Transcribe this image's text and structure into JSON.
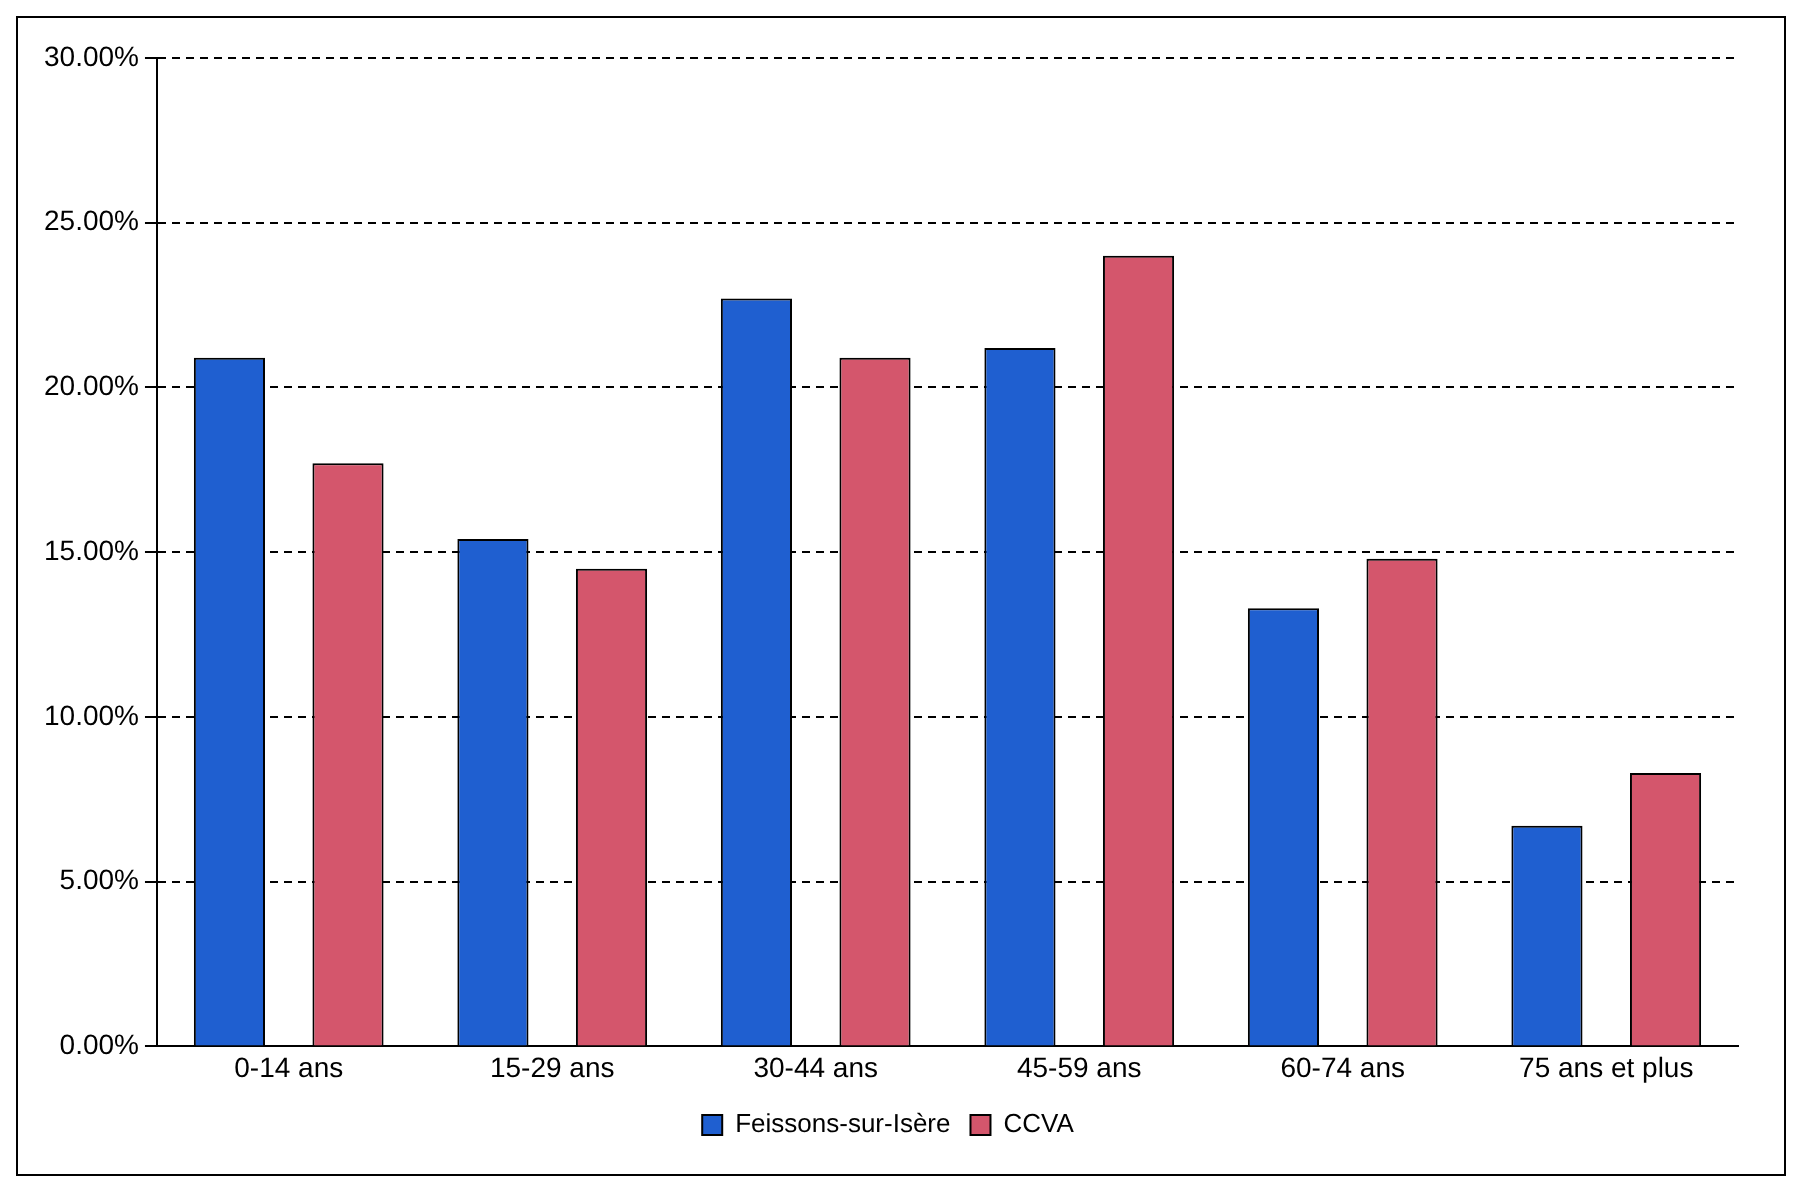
{
  "chart_data": {
    "type": "bar",
    "categories": [
      "0-14 ans",
      "15-29 ans",
      "30-44 ans",
      "45-59 ans",
      "60-74 ans",
      "75 ans et plus"
    ],
    "series": [
      {
        "name": "Feissons-sur-Isère",
        "color": "#1f5fd0",
        "values": [
          20.9,
          15.4,
          22.7,
          21.2,
          13.3,
          6.7
        ]
      },
      {
        "name": "CCVA",
        "color": "#d4566c",
        "values": [
          17.7,
          14.5,
          20.9,
          24.0,
          14.8,
          8.3
        ]
      }
    ],
    "ylim": [
      0,
      30
    ],
    "yticks": [
      {
        "value": 0,
        "label": "0.00%"
      },
      {
        "value": 5,
        "label": "5.00%"
      },
      {
        "value": 10,
        "label": "10.00%"
      },
      {
        "value": 15,
        "label": "15.00%"
      },
      {
        "value": 20,
        "label": "20.00%"
      },
      {
        "value": 25,
        "label": "25.00%"
      },
      {
        "value": 30,
        "label": "30.00%"
      }
    ],
    "grid": "y",
    "legend": "bottom"
  }
}
